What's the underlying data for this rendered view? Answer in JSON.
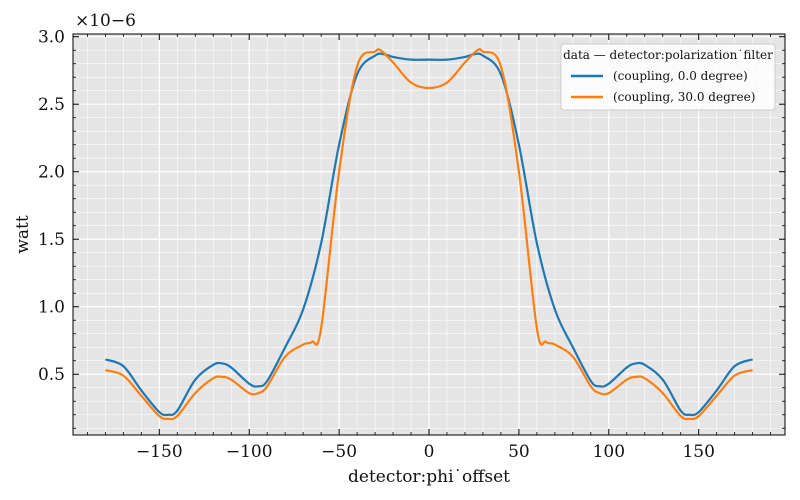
{
  "chart_data": {
    "type": "line",
    "xlabel": "detector:phi˙offset",
    "ylabel": "watt",
    "y_multiplier_label": "×10−6",
    "xlim": [
      -198,
      198
    ],
    "ylim": [
      0.05,
      3.02
    ],
    "x_ticks": [
      -150,
      -100,
      -50,
      0,
      50,
      100,
      150
    ],
    "x_tick_labels": [
      "−150",
      "−100",
      "−50",
      "0",
      "50",
      "100",
      "150"
    ],
    "y_ticks": [
      0.5,
      1.0,
      1.5,
      2.0,
      2.5,
      3.0
    ],
    "y_tick_labels": [
      "0.5",
      "1.0",
      "1.5",
      "2.0",
      "2.5",
      "3.0"
    ],
    "grid": true,
    "legend": {
      "title": "data — detector:polarization˙filter",
      "placement": "top-right"
    },
    "series": [
      {
        "name": "(coupling, 0.0 degree)",
        "color": "#1f77b4",
        "x": [
          -180,
          -170,
          -160,
          -150,
          -145,
          -140,
          -130,
          -120,
          -115,
          -110,
          -100,
          -95,
          -90,
          -80,
          -70,
          -60,
          -50,
          -40,
          -30,
          -25,
          -20,
          -10,
          0,
          10,
          20,
          25,
          30,
          40,
          50,
          60,
          70,
          80,
          90,
          95,
          100,
          110,
          115,
          120,
          130,
          140,
          145,
          150,
          160,
          170,
          180
        ],
        "y": [
          0.61,
          0.56,
          0.38,
          0.22,
          0.2,
          0.23,
          0.46,
          0.57,
          0.58,
          0.55,
          0.43,
          0.41,
          0.45,
          0.7,
          0.98,
          1.47,
          2.2,
          2.72,
          2.86,
          2.87,
          2.85,
          2.83,
          2.83,
          2.83,
          2.85,
          2.87,
          2.86,
          2.72,
          2.2,
          1.47,
          0.98,
          0.7,
          0.45,
          0.41,
          0.43,
          0.55,
          0.58,
          0.57,
          0.46,
          0.23,
          0.2,
          0.22,
          0.38,
          0.56,
          0.61
        ]
      },
      {
        "name": "(coupling, 30.0 degree)",
        "color": "#ff7f0e",
        "x": [
          -180,
          -170,
          -160,
          -150,
          -145,
          -140,
          -130,
          -120,
          -115,
          -110,
          -100,
          -95,
          -90,
          -80,
          -70,
          -65,
          -60,
          -50,
          -40,
          -30,
          -27,
          -20,
          -10,
          0,
          10,
          20,
          27,
          30,
          40,
          50,
          60,
          65,
          70,
          80,
          90,
          95,
          100,
          110,
          115,
          120,
          130,
          140,
          145,
          150,
          160,
          170,
          180
        ],
        "y": [
          0.53,
          0.49,
          0.34,
          0.19,
          0.17,
          0.19,
          0.36,
          0.47,
          0.48,
          0.46,
          0.36,
          0.36,
          0.41,
          0.63,
          0.72,
          0.74,
          0.84,
          2.0,
          2.78,
          2.89,
          2.9,
          2.81,
          2.66,
          2.62,
          2.66,
          2.81,
          2.9,
          2.89,
          2.78,
          2.0,
          0.84,
          0.74,
          0.72,
          0.63,
          0.41,
          0.36,
          0.36,
          0.46,
          0.48,
          0.47,
          0.36,
          0.19,
          0.17,
          0.19,
          0.34,
          0.49,
          0.53
        ]
      }
    ]
  }
}
